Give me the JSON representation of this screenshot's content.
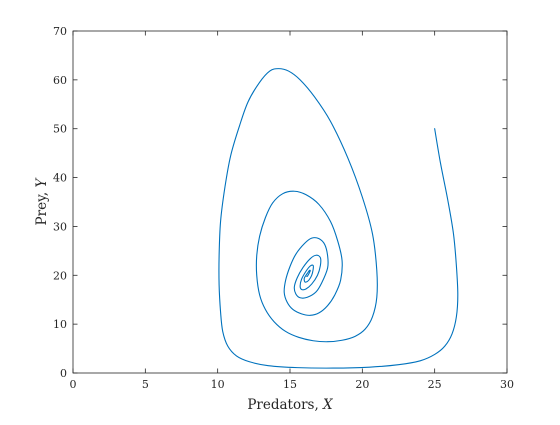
{
  "chart_data": {
    "type": "line",
    "title": "",
    "xlabel": "Predators, ",
    "xlabel_var": "X",
    "ylabel": "Prey, ",
    "ylabel_var": "Y",
    "xlim": [
      0,
      30
    ],
    "ylim": [
      0,
      70
    ],
    "xticks": [
      0,
      5,
      10,
      15,
      20,
      25,
      30
    ],
    "yticks": [
      0,
      10,
      20,
      30,
      40,
      50,
      60,
      70
    ],
    "grid": false,
    "legend": "none",
    "series": [
      {
        "color": "#0072BD",
        "x": [
          25.0,
          25.4,
          25.9,
          26.3,
          26.5,
          26.6,
          26.5,
          26.2,
          25.7,
          25.0,
          24.0,
          22.5,
          20.5,
          18.0,
          15.5,
          13.5,
          12.2,
          11.3,
          10.7,
          10.35,
          10.2,
          10.1,
          10.1,
          10.2,
          10.5,
          10.9,
          11.5,
          12.1,
          12.9,
          13.6,
          14.2,
          14.9,
          15.7,
          16.7,
          17.8,
          19.0,
          20.0,
          20.7,
          21.0,
          21.0,
          20.7,
          20.2,
          19.5,
          18.6,
          17.6,
          16.6,
          15.6,
          14.7,
          13.9,
          13.3,
          12.9,
          12.7,
          12.7,
          12.9,
          13.3,
          13.8,
          14.5,
          15.3,
          16.1,
          17.0,
          17.8,
          18.3,
          18.6,
          18.5,
          18.1,
          17.6,
          17.0,
          16.4,
          15.8,
          15.2,
          14.8,
          14.6,
          14.7,
          15.0,
          15.4,
          16.0,
          16.5,
          17.0,
          17.4,
          17.6,
          17.6,
          17.2,
          16.8,
          16.2,
          15.7,
          15.4,
          15.3,
          15.5,
          15.9,
          16.4,
          16.8,
          17.1,
          17.1,
          16.9,
          16.5,
          16.1,
          15.8,
          15.7,
          15.8,
          16.1,
          16.4,
          16.6,
          16.6,
          16.5,
          16.3,
          16.1,
          16.0,
          16.0,
          16.2,
          16.35,
          16.4,
          16.3,
          16.2,
          16.15
        ],
        "y": [
          50.0,
          43.0,
          35.5,
          28.5,
          22.0,
          16.0,
          11.5,
          8.0,
          5.5,
          3.8,
          2.5,
          1.7,
          1.2,
          1.0,
          1.1,
          1.5,
          2.3,
          3.5,
          5.5,
          8.5,
          12.5,
          18.0,
          24.0,
          31.0,
          38.0,
          44.5,
          50.5,
          55.5,
          59.5,
          61.8,
          62.3,
          61.8,
          60.0,
          56.5,
          51.5,
          44.0,
          36.0,
          28.5,
          21.0,
          15.5,
          11.5,
          9.0,
          7.5,
          6.7,
          6.4,
          6.6,
          7.3,
          8.5,
          10.5,
          13.0,
          16.0,
          20.0,
          24.0,
          28.0,
          31.8,
          34.8,
          36.7,
          37.2,
          36.5,
          34.5,
          31.0,
          27.0,
          23.0,
          19.0,
          16.0,
          13.8,
          12.3,
          11.8,
          12.1,
          13.0,
          14.5,
          16.5,
          19.0,
          21.8,
          24.3,
          26.5,
          27.6,
          27.5,
          26.3,
          24.0,
          21.5,
          18.5,
          16.6,
          15.5,
          15.4,
          16.2,
          17.6,
          19.5,
          21.6,
          23.4,
          24.1,
          23.6,
          22.0,
          20.0,
          18.2,
          17.2,
          17.1,
          17.8,
          19.2,
          20.8,
          21.9,
          22.0,
          21.2,
          20.0,
          19.0,
          18.6,
          18.8,
          19.5,
          20.4,
          21.0,
          20.9,
          20.3,
          19.8,
          19.8
        ]
      }
    ]
  }
}
